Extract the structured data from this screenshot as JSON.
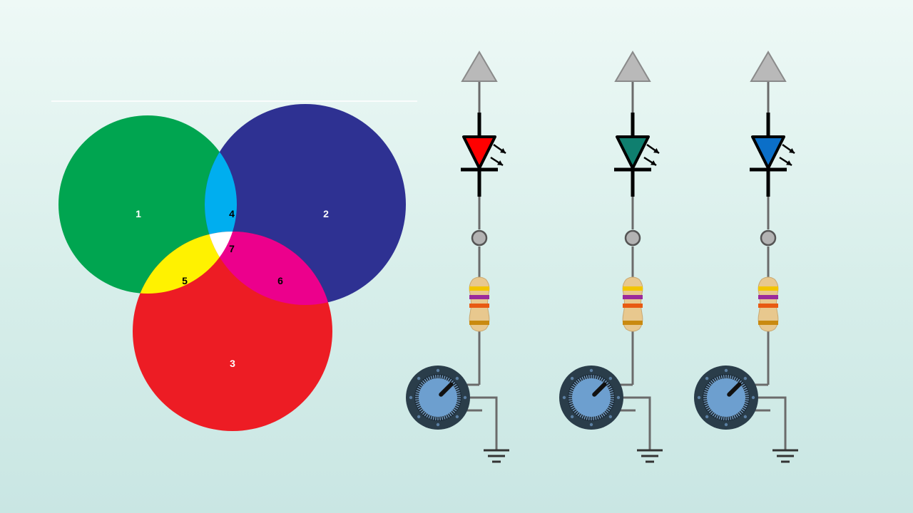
{
  "venn": {
    "regions": [
      {
        "label": "1",
        "color": "#00a550",
        "text_color": "#ffffff"
      },
      {
        "label": "2",
        "color": "#2e3192",
        "text_color": "#ffffff"
      },
      {
        "label": "3",
        "color": "#ed1c24",
        "text_color": "#ffffff"
      },
      {
        "label": "4",
        "color": "#00aeef",
        "text_color": "#000000"
      },
      {
        "label": "5",
        "color": "#fff200",
        "text_color": "#000000"
      },
      {
        "label": "6",
        "color": "#ec008c",
        "text_color": "#000000"
      },
      {
        "label": "7",
        "color": "#ffffff",
        "text_color": "#000000"
      }
    ]
  },
  "circuits": [
    {
      "led_color": "#ff0000",
      "resistor_bands": [
        "#f2c500",
        "#9b2a9b",
        "#e85a12",
        "#c98a10"
      ]
    },
    {
      "led_color": "#0f7f6f",
      "resistor_bands": [
        "#f2c500",
        "#9b2a9b",
        "#e85a12",
        "#c98a10"
      ]
    },
    {
      "led_color": "#0b6fc8",
      "resistor_bands": [
        "#f2c500",
        "#9b2a9b",
        "#e85a12",
        "#c98a10"
      ]
    }
  ],
  "colors": {
    "wire": "#6b6b6b",
    "supply": "#b9b9b9",
    "knob_ring": "#2a3d4a",
    "knob_face": "#6d9fcf"
  }
}
